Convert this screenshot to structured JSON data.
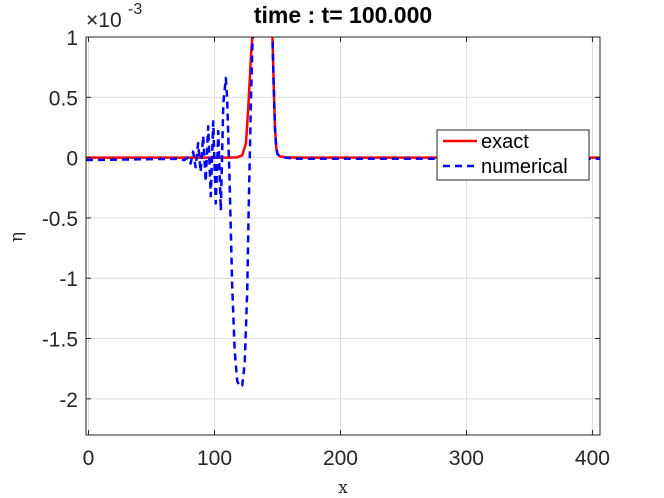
{
  "chart_data": {
    "type": "line",
    "title": "time : t= 100.000",
    "xlabel": "x",
    "ylabel": "η",
    "y_exponent_label": "×10",
    "y_exponent_power": "-3",
    "xlim": [
      -2,
      406
    ],
    "ylim": [
      -2.3,
      1.0
    ],
    "xticks": [
      0,
      100,
      200,
      300,
      400
    ],
    "xtick_labels": [
      "0",
      "100",
      "200",
      "300",
      "400"
    ],
    "yticks": [
      1,
      0.5,
      0,
      -0.5,
      -1,
      -1.5,
      -2
    ],
    "ytick_labels": [
      "1",
      "0.5",
      "0",
      "-0.5",
      "-1",
      "-1.5",
      "-2"
    ],
    "grid": true,
    "legend_position": "right",
    "series": [
      {
        "name": "exact",
        "color": "#ff0000",
        "style": "solid",
        "x": [
          -2,
          110,
          118,
          122,
          125,
          127,
          129,
          130,
          131,
          132,
          145,
          146,
          147,
          148,
          149,
          150,
          152,
          156,
          165,
          406
        ],
        "y": [
          0,
          0,
          0.002,
          0.02,
          0.12,
          0.45,
          0.85,
          1.0,
          1.1,
          1.1,
          1.1,
          1.0,
          0.6,
          0.25,
          0.08,
          0.03,
          0.01,
          0.003,
          0,
          0
        ]
      },
      {
        "name": "numerical",
        "color": "#0000ff",
        "style": "dashed",
        "x": [
          -2,
          70,
          76,
          79,
          81,
          83,
          85,
          87,
          89,
          91,
          93,
          95,
          97,
          99,
          101,
          103,
          105,
          107,
          109,
          110,
          112,
          114,
          116,
          118,
          120,
          122,
          124,
          126,
          127,
          128,
          129,
          130,
          131,
          132,
          145,
          146,
          147,
          148,
          149,
          150,
          152,
          156,
          165,
          406
        ],
        "y": [
          -0.02,
          -0.01,
          -0.02,
          0.0,
          -0.05,
          0.05,
          -0.08,
          0.12,
          -0.12,
          0.18,
          -0.2,
          0.26,
          -0.32,
          0.3,
          -0.38,
          0.22,
          -0.44,
          0.45,
          0.66,
          0.5,
          -0.2,
          -1.05,
          -1.6,
          -1.85,
          -1.9,
          -1.89,
          -1.7,
          -1.1,
          -0.5,
          0.0,
          0.5,
          0.9,
          1.1,
          1.1,
          1.1,
          1.0,
          0.6,
          0.25,
          0.08,
          0.03,
          0.01,
          0.0,
          -0.01,
          -0.01
        ]
      }
    ]
  }
}
